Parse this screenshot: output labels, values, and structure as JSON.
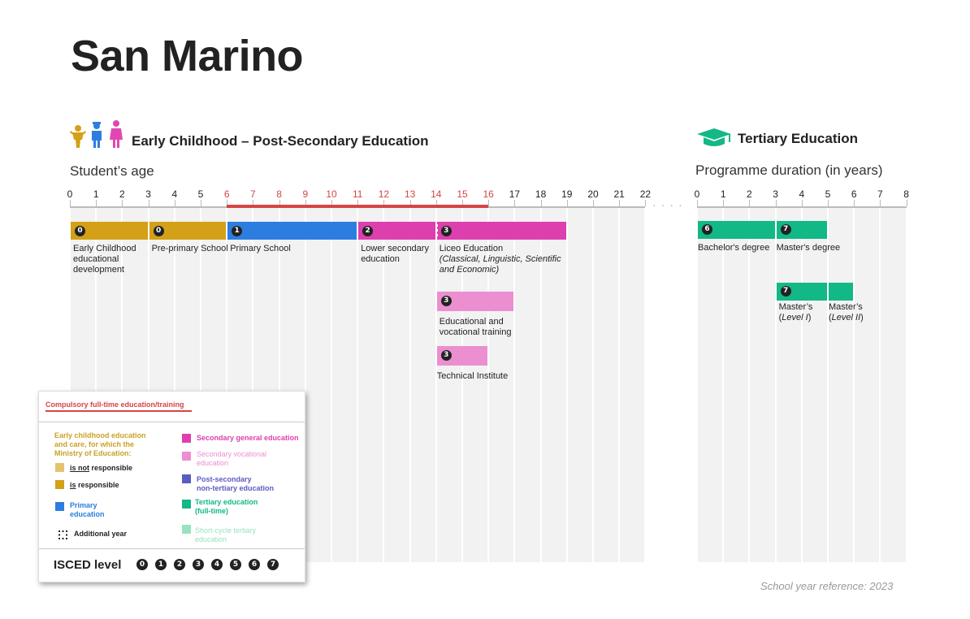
{
  "page_title": "San Marino",
  "left_section": {
    "title": "Early Childhood – Post-Secondary Education",
    "axis_title": "Student’s age",
    "ticks": [
      "0",
      "1",
      "2",
      "3",
      "4",
      "5",
      "6",
      "7",
      "8",
      "9",
      "10",
      "11",
      "12",
      "13",
      "14",
      "15",
      "16",
      "17",
      "18",
      "19",
      "20",
      "21",
      "22"
    ],
    "compulsory_range": [
      6,
      16
    ]
  },
  "right_section": {
    "title": "Tertiary Education",
    "axis_title": "Programme duration (in years)",
    "ticks": [
      "0",
      "1",
      "2",
      "3",
      "4",
      "5",
      "6",
      "7",
      "8"
    ]
  },
  "programmes": [
    {
      "name": "Early Childhood educational development",
      "lines": [
        "Early Childhood",
        "educational",
        "development"
      ],
      "isced": "0",
      "start": 0,
      "end": 3,
      "color": "#d4a017"
    },
    {
      "name": "Pre-primary School",
      "lines": [
        "Pre-primary School"
      ],
      "isced": "0",
      "start": 3,
      "end": 6,
      "color": "#d4a017"
    },
    {
      "name": "Primary School",
      "lines": [
        "Primary School"
      ],
      "isced": "1",
      "start": 6,
      "end": 11,
      "color": "#2d7de0"
    },
    {
      "name": "Lower secondary education",
      "lines": [
        "Lower secondary",
        "education"
      ],
      "isced": "2",
      "start": 11,
      "end": 14,
      "color": "#dd3fae"
    },
    {
      "name": "Liceo Education",
      "lines": [
        "Liceo Education"
      ],
      "italic_lines": [
        "(Classical, Linguistic, Scientific",
        "and Economic)"
      ],
      "isced": "3",
      "start": 14,
      "end": 19,
      "color": "#dd3fae"
    },
    {
      "name": "Educational and vocational training",
      "lines": [
        "Educational and",
        "vocational training"
      ],
      "isced": "3",
      "start": 14,
      "end": 17,
      "color": "#eb8fd0"
    },
    {
      "name": "Technical Institute",
      "lines": [
        "Technical Institute"
      ],
      "isced": "3",
      "start": 14,
      "end": 16,
      "color": "#eb8fd0"
    }
  ],
  "tertiary": [
    {
      "name": "Bachelor's degree",
      "isced": "6",
      "start": 0,
      "end": 3,
      "color": "#12b886"
    },
    {
      "name": "Master's degree",
      "isced": "7",
      "start": 3,
      "end": 5,
      "color": "#12b886"
    },
    {
      "name": "Master's (Level I)",
      "isced": "7",
      "start": 3,
      "end": 5,
      "color": "#12b886",
      "label_main": "Master’s",
      "label_level": "Level I"
    },
    {
      "name": "Master's (Level II)",
      "isced": "7",
      "start": 5,
      "end": 6,
      "color": "#12b886",
      "label_main": "Master’s",
      "label_level": "Level II"
    }
  ],
  "legend": {
    "compulsory": "Compulsory full-time education/training",
    "ecec_heading": [
      "Early childhood education",
      "and care, for which the",
      "Ministry of Education:"
    ],
    "not_responsible_u": "is not",
    "not_responsible_rest": " responsible",
    "responsible_u": "is",
    "responsible_rest": " responsible",
    "primary": [
      "Primary",
      "education"
    ],
    "additional_year": "Additional year",
    "secondary_general": "Secondary general education",
    "secondary_vocational": [
      "Secondary vocational",
      "education"
    ],
    "post_secondary": [
      "Post-secondary",
      "non-tertiary education"
    ],
    "tertiary_full": [
      "Tertiary education",
      "(full-time)"
    ],
    "short_cycle": [
      "Short-cycle tertiary",
      "education"
    ],
    "isced_label": "ISCED level",
    "isced_levels": [
      "0",
      "1",
      "2",
      "3",
      "4",
      "5",
      "6",
      "7"
    ],
    "colors": {
      "ecec_not": "#e3c36e",
      "ecec_is": "#d4a017",
      "primary": "#2d7de0",
      "secondary_general": "#dd3fae",
      "secondary_vocational": "#eb8fd0",
      "post_secondary": "#5b5bc4",
      "tertiary": "#12b886",
      "short_cycle": "#96e3bf",
      "compulsory": "#d64545"
    }
  },
  "footer_note": "School year reference: 2023"
}
